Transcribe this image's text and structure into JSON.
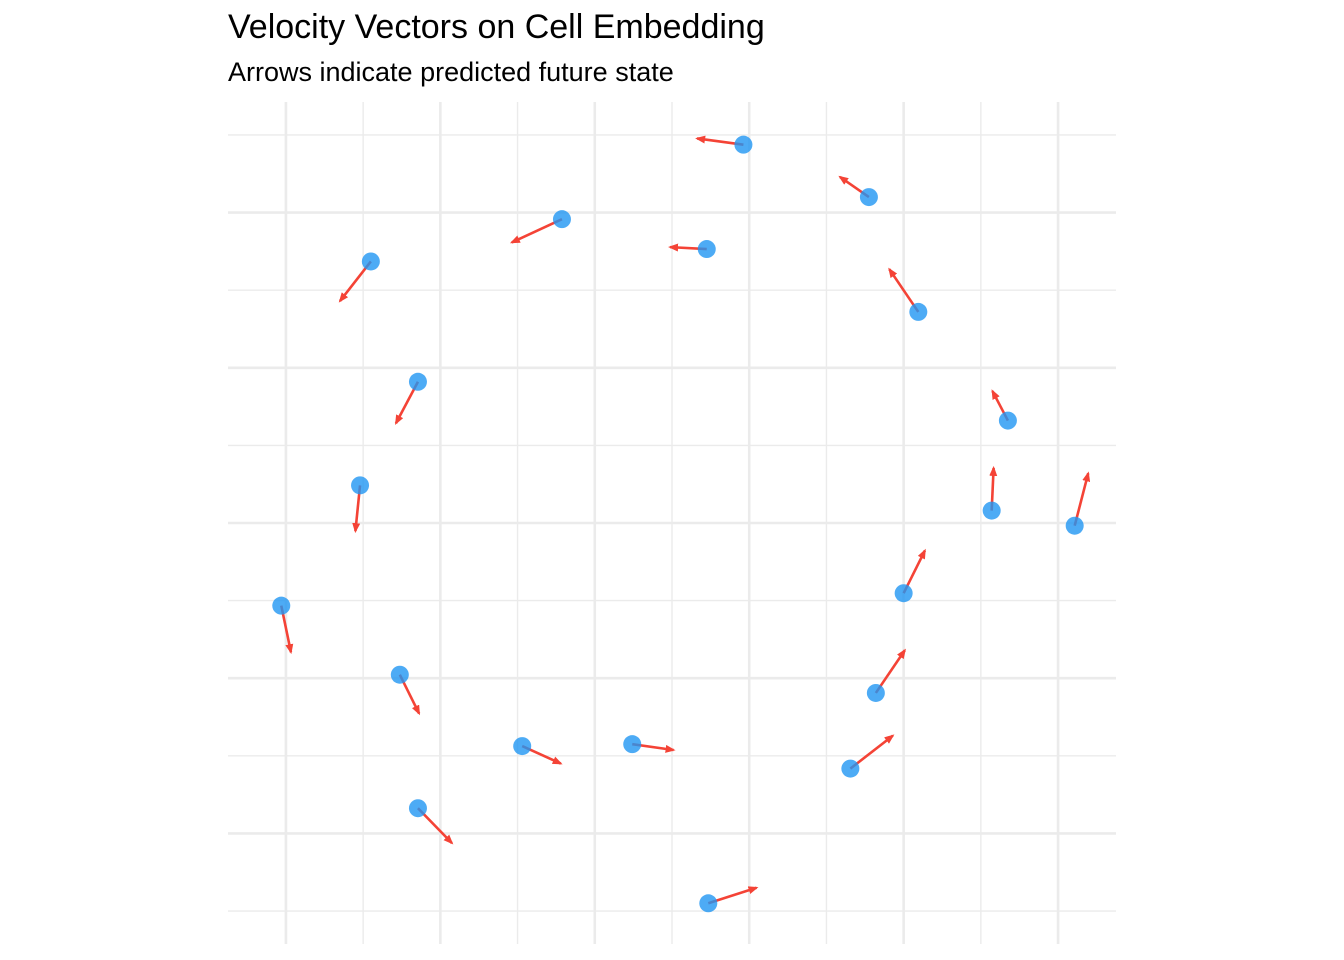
{
  "chart_data": {
    "type": "scatter",
    "title": "Velocity Vectors on Cell Embedding",
    "subtitle": "Arrows indicate predicted future state",
    "xlabel": "",
    "ylabel": "",
    "grid": true,
    "axes_visible": false,
    "xlim": [
      -1.15,
      1.15
    ],
    "ylim": [
      -1.085,
      1.085
    ],
    "x_major_ticks": [
      -1.0,
      -0.6,
      -0.2,
      0.2,
      0.6,
      1.0
    ],
    "x_minor_ticks": [
      -0.8,
      -0.4,
      0.0,
      0.4,
      0.8
    ],
    "y_major_ticks": [
      -0.8,
      -0.4,
      0.0,
      0.4,
      0.8
    ],
    "y_minor_ticks": [
      -1.0,
      -0.6,
      -0.2,
      0.2,
      0.6,
      1.0
    ],
    "colors": {
      "point": "#2196F3",
      "arrow": "#F44336",
      "grid": "#EBEBEB",
      "background": "#FFFFFF",
      "text": "#000000"
    },
    "points": [
      {
        "x": 0.185,
        "y": 0.975,
        "dx": -0.12,
        "dy": 0.016
      },
      {
        "x": 0.51,
        "y": 0.84,
        "dx": -0.075,
        "dy": 0.052
      },
      {
        "x": -0.285,
        "y": 0.783,
        "dx": -0.13,
        "dy": -0.06
      },
      {
        "x": 0.09,
        "y": 0.706,
        "dx": -0.095,
        "dy": 0.005
      },
      {
        "x": -0.78,
        "y": 0.674,
        "dx": -0.08,
        "dy": -0.102
      },
      {
        "x": 0.638,
        "y": 0.544,
        "dx": -0.075,
        "dy": 0.11
      },
      {
        "x": -0.658,
        "y": 0.364,
        "dx": -0.057,
        "dy": -0.107
      },
      {
        "x": 0.87,
        "y": 0.264,
        "dx": -0.04,
        "dy": 0.076
      },
      {
        "x": -0.808,
        "y": 0.097,
        "dx": -0.012,
        "dy": -0.118
      },
      {
        "x": 0.828,
        "y": 0.032,
        "dx": 0.005,
        "dy": 0.11
      },
      {
        "x": 1.043,
        "y": -0.007,
        "dx": 0.035,
        "dy": 0.135
      },
      {
        "x": 0.6,
        "y": -0.181,
        "dx": 0.055,
        "dy": 0.11
      },
      {
        "x": -1.012,
        "y": -0.213,
        "dx": 0.025,
        "dy": -0.12
      },
      {
        "x": 0.528,
        "y": -0.438,
        "dx": 0.075,
        "dy": 0.11
      },
      {
        "x": -0.705,
        "y": -0.391,
        "dx": 0.05,
        "dy": -0.1
      },
      {
        "x": -0.388,
        "y": -0.575,
        "dx": 0.1,
        "dy": -0.045
      },
      {
        "x": -0.103,
        "y": -0.57,
        "dx": 0.107,
        "dy": -0.015
      },
      {
        "x": 0.462,
        "y": -0.633,
        "dx": 0.11,
        "dy": 0.085
      },
      {
        "x": -0.658,
        "y": -0.735,
        "dx": 0.088,
        "dy": -0.09
      },
      {
        "x": 0.094,
        "y": -0.98,
        "dx": 0.125,
        "dy": 0.04
      }
    ]
  }
}
